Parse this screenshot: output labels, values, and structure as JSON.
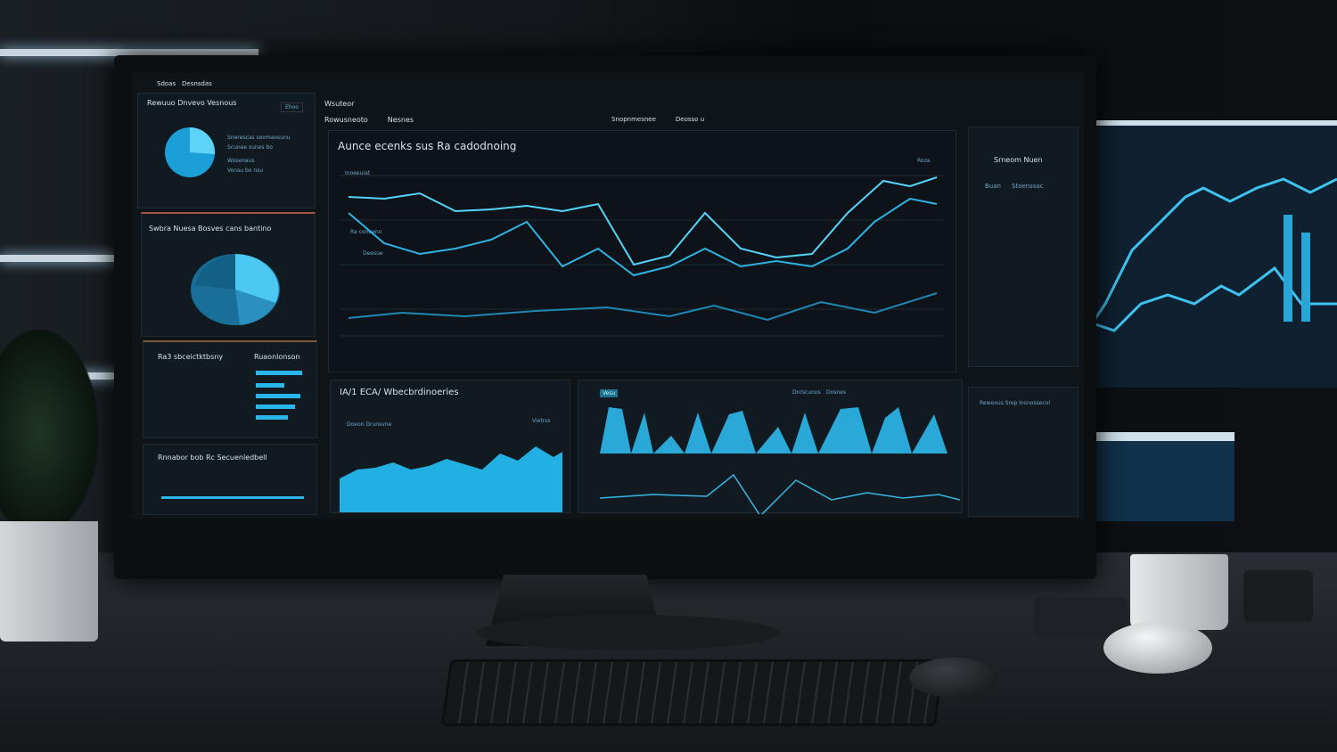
{
  "scene": {
    "accent": "#29b6e8",
    "background": "#0a0d10"
  },
  "dashboard": {
    "topbar": {
      "title": "Sdoas",
      "subtitle": "Desnsdas"
    },
    "left_header": {
      "title": "Rewuuo Dnvevo Vesnous",
      "button": "Ehoo"
    },
    "main_header": {
      "title": "Wsuteor",
      "tabs": [
        "Rowusneoto",
        "Nesnes",
        "Snopnmesnee",
        "Deosso u"
      ]
    },
    "chart_title": "Aunce ecenks sus Ra cadodnoing",
    "chart_labels": [
      "Inoeeuiat",
      "Ra coneeno",
      "Deesue"
    ],
    "chart_badge": "Roza",
    "pie1_legend": [
      "Snerescas sevmaosunu",
      "Scunee sunes bo",
      "Wosenaus",
      "Vonsu bo nsu"
    ],
    "pie2_title": "Swbra Nuesa Bosves cans bantino",
    "bars_panel": {
      "title": "Ra3 sbceictktbsny",
      "subtitle": "Ruaonlonson"
    },
    "bottom_left": "Rnnabor bob Rc Secuenledbell",
    "area_panel": {
      "title": "IA/1 ECA/ Wbecbrdinoeries",
      "sub": "Doeon Drunsvne",
      "badge": "Vietrss"
    },
    "spectrum_panel": {
      "tag": "Vesu",
      "labels": [
        "Dnrscunos",
        "Dosnes"
      ]
    },
    "right_panel": {
      "title": "Srneom Nuen",
      "tabs": [
        "Buan",
        "Stoenssac"
      ],
      "bottom_title": "Reweous Srep Insnossecol"
    }
  }
}
